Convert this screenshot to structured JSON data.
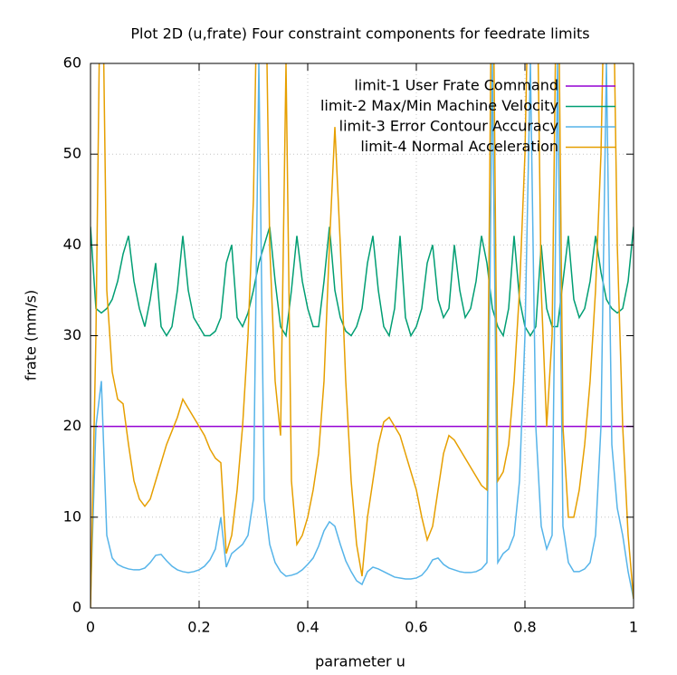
{
  "chart_data": {
    "type": "line",
    "title": "Plot 2D (u,frate) Four constraint components for feedrate limits",
    "x_label": "parameter u",
    "y_label": "frate (mm/s)",
    "xlim": [
      0,
      1
    ],
    "ylim": [
      0,
      60
    ],
    "xticks": [
      0,
      0.2,
      0.4,
      0.6,
      0.8,
      1
    ],
    "yticks": [
      0,
      10,
      20,
      30,
      40,
      50,
      60
    ],
    "grid": true,
    "legend": "top-right",
    "x": [
      0,
      0.01,
      0.02,
      0.03,
      0.04,
      0.05,
      0.06,
      0.07,
      0.08,
      0.09,
      0.1,
      0.11,
      0.12,
      0.13,
      0.14,
      0.15,
      0.16,
      0.17,
      0.18,
      0.19,
      0.2,
      0.21,
      0.22,
      0.23,
      0.24,
      0.25,
      0.26,
      0.27,
      0.28,
      0.29,
      0.3,
      0.31,
      0.32,
      0.33,
      0.34,
      0.35,
      0.36,
      0.37,
      0.38,
      0.39,
      0.4,
      0.41,
      0.42,
      0.43,
      0.44,
      0.45,
      0.46,
      0.47,
      0.48,
      0.49,
      0.5,
      0.51,
      0.52,
      0.53,
      0.54,
      0.55,
      0.56,
      0.57,
      0.58,
      0.59,
      0.6,
      0.61,
      0.62,
      0.63,
      0.64,
      0.65,
      0.66,
      0.67,
      0.68,
      0.69,
      0.7,
      0.71,
      0.72,
      0.73,
      0.74,
      0.75,
      0.76,
      0.77,
      0.78,
      0.79,
      0.8,
      0.81,
      0.82,
      0.83,
      0.84,
      0.85,
      0.86,
      0.87,
      0.88,
      0.89,
      0.9,
      0.91,
      0.92,
      0.93,
      0.94,
      0.95,
      0.96,
      0.97,
      0.98,
      0.99,
      1
    ],
    "series": [
      {
        "name": "limit-1 User Frate Command",
        "color": "#9400d3",
        "values": [
          20,
          20,
          20,
          20,
          20,
          20,
          20,
          20,
          20,
          20,
          20,
          20,
          20,
          20,
          20,
          20,
          20,
          20,
          20,
          20,
          20,
          20,
          20,
          20,
          20,
          20,
          20,
          20,
          20,
          20,
          20,
          20,
          20,
          20,
          20,
          20,
          20,
          20,
          20,
          20,
          20,
          20,
          20,
          20,
          20,
          20,
          20,
          20,
          20,
          20,
          20,
          20,
          20,
          20,
          20,
          20,
          20,
          20,
          20,
          20,
          20,
          20,
          20,
          20,
          20,
          20,
          20,
          20,
          20,
          20,
          20,
          20,
          20,
          20,
          20,
          20,
          20,
          20,
          20,
          20,
          20,
          20,
          20,
          20,
          20,
          20,
          20,
          20,
          20,
          20,
          20,
          20,
          20,
          20,
          20,
          20,
          20,
          20,
          20,
          20,
          20
        ]
      },
      {
        "name": "limit-2 Max/Min Machine Velocity",
        "color": "#009e73",
        "values": [
          42,
          33,
          32.5,
          33,
          34,
          36,
          39,
          41,
          36,
          33,
          31,
          34,
          38,
          31,
          30,
          31,
          35,
          41,
          35,
          32,
          31,
          30,
          30,
          30.5,
          32,
          38,
          40,
          32,
          31,
          32.5,
          35,
          38,
          40,
          42,
          36,
          31,
          30,
          35,
          41,
          36,
          33,
          31,
          31,
          36,
          42,
          35,
          32,
          30.5,
          30,
          31,
          33,
          38,
          41,
          35,
          31,
          30,
          33,
          41,
          32,
          30,
          31,
          33,
          38,
          40,
          34,
          32,
          33,
          40,
          35,
          32,
          33,
          36,
          41,
          38,
          33,
          31,
          30,
          33,
          41,
          34,
          31,
          30,
          31,
          40,
          33,
          31,
          31,
          36,
          41,
          34,
          32,
          33,
          36,
          41,
          37,
          34,
          33,
          32.5,
          33,
          36,
          42
        ]
      },
      {
        "name": "limit-3 Error Contour Accuracy",
        "color": "#56b4e9",
        "values": [
          1,
          20,
          25,
          8,
          5.5,
          4.8,
          4.5,
          4.3,
          4.2,
          4.2,
          4.4,
          5,
          5.8,
          5.9,
          5.2,
          4.6,
          4.2,
          4,
          3.9,
          4,
          4.2,
          4.6,
          5.3,
          6.5,
          10,
          4.5,
          6,
          6.5,
          7,
          8,
          12,
          60,
          12,
          7,
          5,
          4,
          3.5,
          3.6,
          3.8,
          4.2,
          4.8,
          5.5,
          6.8,
          8.5,
          9.5,
          9,
          7,
          5.2,
          4,
          3,
          2.6,
          4,
          4.5,
          4.3,
          4,
          3.7,
          3.4,
          3.3,
          3.2,
          3.2,
          3.3,
          3.6,
          4.3,
          5.3,
          5.5,
          4.8,
          4.4,
          4.2,
          4,
          3.9,
          3.9,
          4,
          4.3,
          5,
          60,
          5,
          6,
          6.5,
          8,
          14,
          30,
          60,
          20,
          9,
          6.5,
          8,
          60,
          9,
          5,
          4,
          4,
          4.3,
          5,
          8,
          20,
          60,
          18,
          11,
          8,
          4,
          1
        ]
      },
      {
        "name": "limit-4 Normal Acceleration",
        "color": "#e69f00",
        "values": [
          0,
          30,
          80,
          35,
          26,
          23,
          22.5,
          18,
          14,
          12,
          11.2,
          12,
          14,
          16,
          18,
          19.5,
          21,
          23,
          22,
          21,
          20,
          19,
          17.5,
          16.5,
          16,
          6,
          8,
          13,
          20,
          30,
          45,
          80,
          80,
          40,
          25,
          19,
          60,
          14,
          7,
          8,
          10,
          13,
          17,
          25,
          40,
          53,
          40,
          25,
          14,
          7,
          3.5,
          10,
          14,
          18,
          20.5,
          21,
          20,
          19,
          17,
          15,
          13,
          10,
          7.5,
          9,
          13,
          17,
          19,
          18.5,
          17.5,
          16.5,
          15.5,
          14.5,
          13.5,
          13,
          80,
          14,
          15,
          18,
          25,
          35,
          50,
          80,
          80,
          35,
          20,
          30,
          80,
          20,
          10,
          10,
          13,
          18,
          25,
          35,
          50,
          80,
          80,
          40,
          20,
          8,
          1
        ]
      }
    ]
  }
}
